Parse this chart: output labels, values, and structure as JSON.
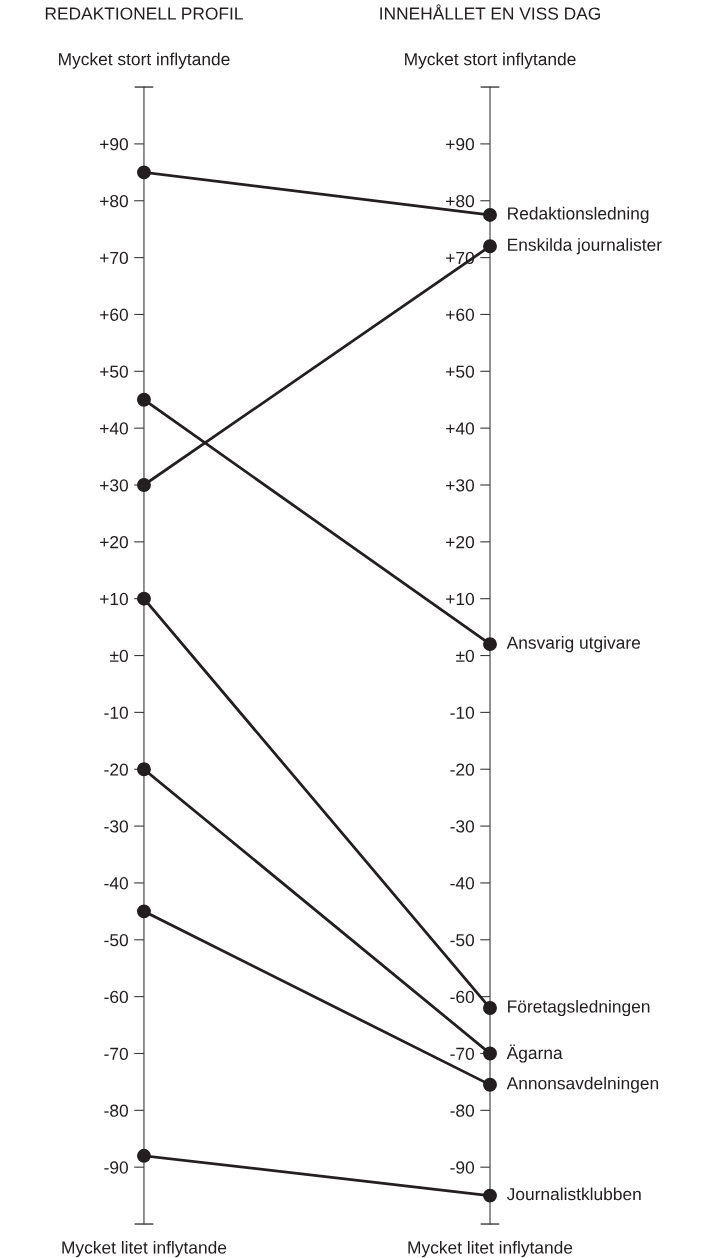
{
  "chart_data": {
    "type": "line",
    "categories": [
      "REDAKTIONELL PROFIL",
      "INNEHÅLLET EN VISS DAG"
    ],
    "series": [
      {
        "name": "Redaktionsledning",
        "color": "#231f20",
        "values": [
          85,
          77.5
        ]
      },
      {
        "name": "Enskilda journalister",
        "color": "#231f20",
        "values": [
          30,
          72
        ]
      },
      {
        "name": "Ansvarig utgivare",
        "color": "#231f20",
        "values": [
          45,
          2
        ]
      },
      {
        "name": "Företagsledningen",
        "color": "#231f20",
        "values": [
          10,
          -62
        ]
      },
      {
        "name": "Ägarna",
        "color": "#231f20",
        "values": [
          -20,
          -70
        ]
      },
      {
        "name": "Annonsavdelningen",
        "color": "#231f20",
        "values": [
          -45,
          -75.5
        ]
      },
      {
        "name": "Journalistklubben",
        "color": "#231f20",
        "values": [
          -88,
          -95
        ]
      }
    ],
    "ylim": [
      -100,
      100
    ],
    "yticks": [
      {
        "value": 90,
        "label": "+90"
      },
      {
        "value": 80,
        "label": "+80"
      },
      {
        "value": 70,
        "label": "+70"
      },
      {
        "value": 60,
        "label": "+60"
      },
      {
        "value": 50,
        "label": "+50"
      },
      {
        "value": 40,
        "label": "+40"
      },
      {
        "value": 30,
        "label": "+30"
      },
      {
        "value": 20,
        "label": "+20"
      },
      {
        "value": 10,
        "label": "+10"
      },
      {
        "value": 0,
        "label": "±0"
      },
      {
        "value": -10,
        "label": "-10"
      },
      {
        "value": -20,
        "label": "-20"
      },
      {
        "value": -30,
        "label": "-30"
      },
      {
        "value": -40,
        "label": "-40"
      },
      {
        "value": -50,
        "label": "-50"
      },
      {
        "value": -60,
        "label": "-60"
      },
      {
        "value": -70,
        "label": "-70"
      },
      {
        "value": -80,
        "label": "-80"
      },
      {
        "value": -90,
        "label": "-90"
      }
    ],
    "annotations": [
      "Mycket stort inflytande",
      "Mycket stort inflytande",
      "Mycket litet inflytande",
      "Mycket litet inflytande"
    ],
    "marker": "circle",
    "line_style": "solid",
    "legend": "right"
  }
}
